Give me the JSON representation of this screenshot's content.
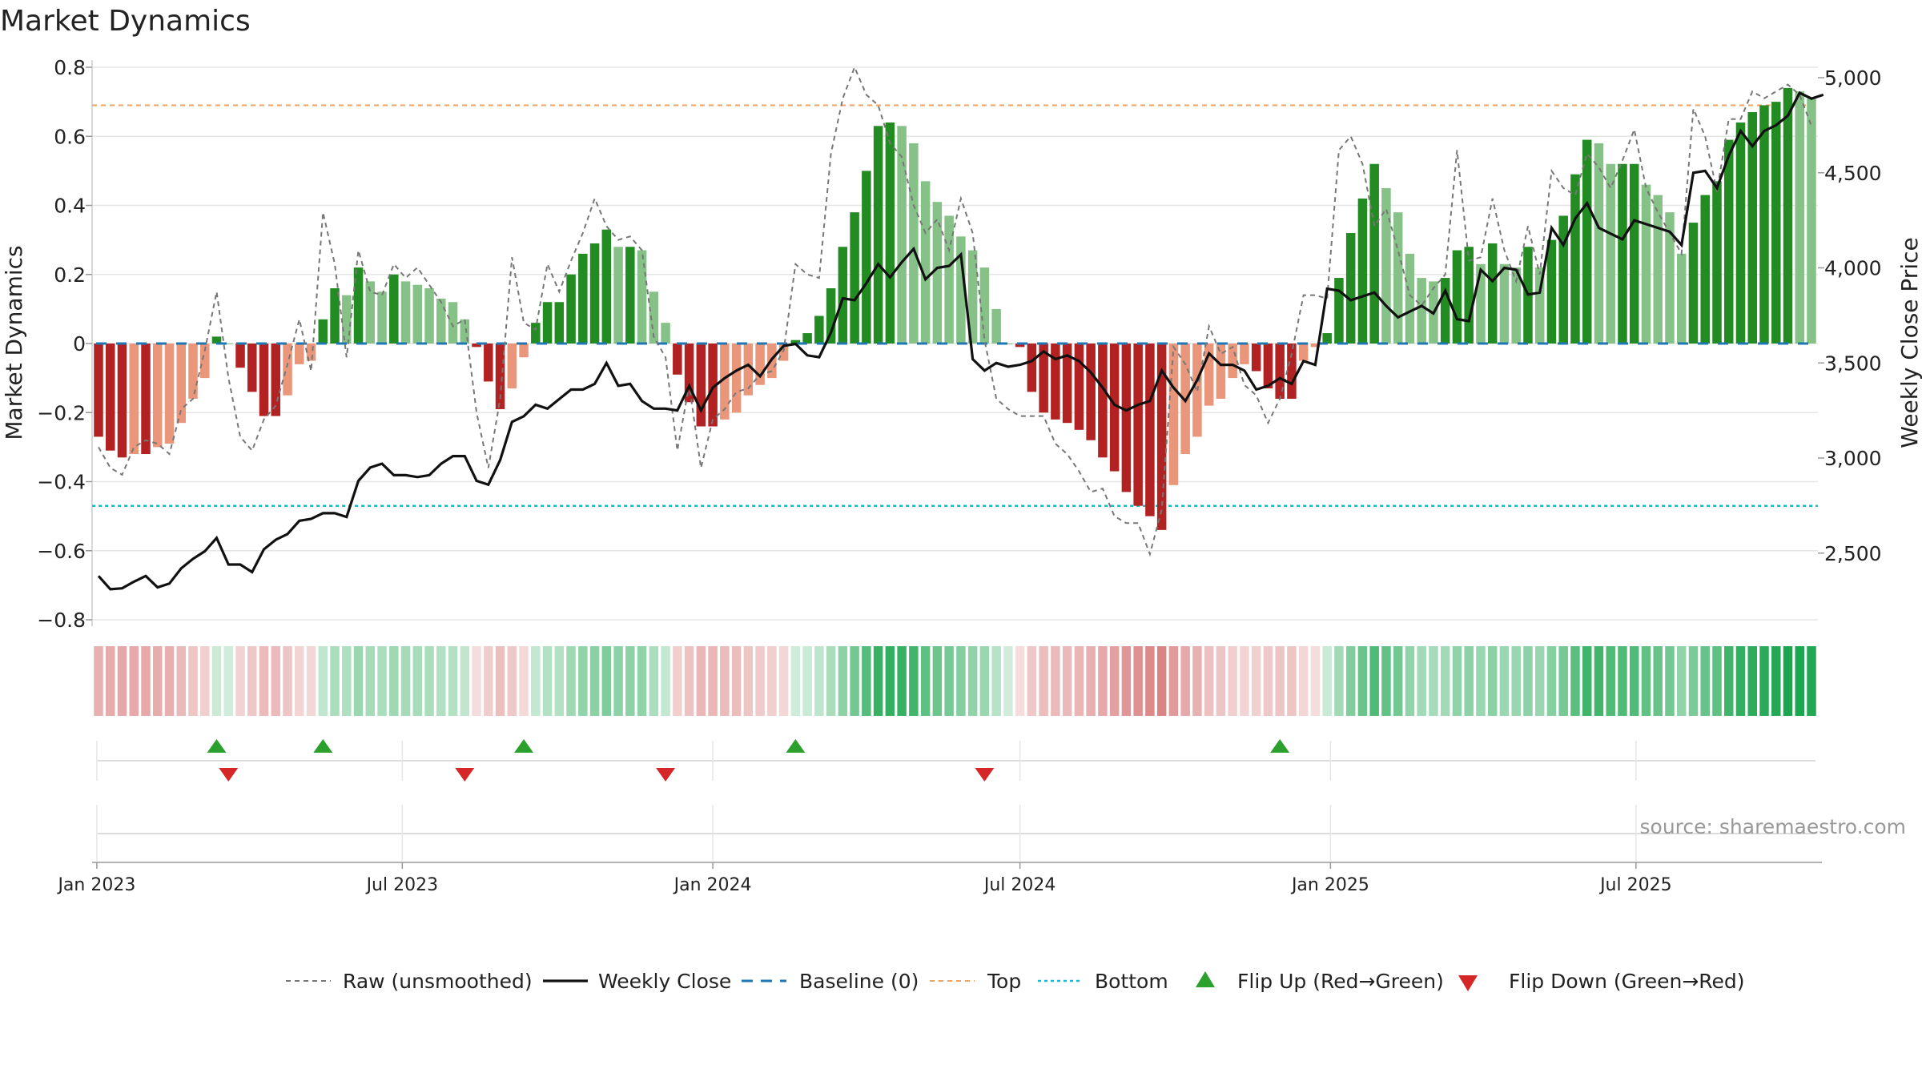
{
  "title": "Market Dynamics",
  "source": "source: sharemaestro.com",
  "colors": {
    "bar_red_strong": "#b22222",
    "bar_red_light": "#e9967a",
    "bar_green_strong": "#228b22",
    "bar_green_light": "#86c287",
    "raw_line": "#777777",
    "close_line": "#111111",
    "baseline": "#1f77b4",
    "top_line": "#f4a261",
    "bottom_line": "#17becf",
    "flip_up": "#2ca02c",
    "flip_down": "#d62728",
    "grid": "#e6e6e6"
  },
  "chart_data": {
    "type": "bar",
    "title": "Market Dynamics",
    "ylabel": "Market Dynamics",
    "y2label": "Weekly Close Price",
    "ylim": [
      -0.85,
      0.82
    ],
    "y2lim": [
      2100,
      5100
    ],
    "yticks": [
      "0.8",
      "0.6",
      "0.4",
      "0.2",
      "0",
      "−0.2",
      "−0.4",
      "−0.6",
      "−0.8"
    ],
    "y2ticks": [
      "5,000",
      "4,500",
      "4,000",
      "3,500",
      "3,000",
      "2,500"
    ],
    "xticks": [
      "Jan 2023",
      "Jul 2023",
      "Jan 2024",
      "Jul 2024",
      "Jan 2025",
      "Jul 2025"
    ],
    "x_start": "2023-01-02",
    "x_step_days": 7,
    "top_level": 0.69,
    "bottom_level": -0.47,
    "grid": true,
    "legend_position": "bottom",
    "legend": [
      "Raw (unsmoothed)",
      "Weekly Close",
      "Baseline (0)",
      "Top",
      "Bottom",
      "Flip Up (Red→Green)",
      "Flip Down (Green→Red)"
    ],
    "dynamics": [
      -0.27,
      -0.31,
      -0.33,
      -0.32,
      -0.32,
      -0.3,
      -0.29,
      -0.23,
      -0.16,
      -0.1,
      0.02,
      0.0,
      -0.07,
      -0.14,
      -0.21,
      -0.21,
      -0.15,
      -0.06,
      -0.05,
      0.07,
      0.16,
      0.14,
      0.22,
      0.18,
      0.15,
      0.2,
      0.18,
      0.17,
      0.16,
      0.13,
      0.12,
      0.07,
      -0.01,
      -0.11,
      -0.19,
      -0.13,
      -0.04,
      0.06,
      0.12,
      0.12,
      0.2,
      0.26,
      0.29,
      0.33,
      0.28,
      0.28,
      0.27,
      0.15,
      0.06,
      -0.09,
      -0.17,
      -0.24,
      -0.24,
      -0.22,
      -0.2,
      -0.15,
      -0.12,
      -0.1,
      -0.05,
      0.01,
      0.03,
      0.08,
      0.16,
      0.28,
      0.38,
      0.5,
      0.63,
      0.64,
      0.63,
      0.58,
      0.47,
      0.41,
      0.37,
      0.31,
      0.27,
      0.22,
      0.1,
      0.0,
      -0.01,
      -0.14,
      -0.2,
      -0.22,
      -0.23,
      -0.25,
      -0.28,
      -0.33,
      -0.37,
      -0.43,
      -0.47,
      -0.5,
      -0.54,
      -0.41,
      -0.32,
      -0.27,
      -0.18,
      -0.16,
      -0.1,
      -0.06,
      -0.08,
      -0.13,
      -0.16,
      -0.16,
      -0.05,
      -0.01,
      0.03,
      0.19,
      0.32,
      0.42,
      0.52,
      0.45,
      0.38,
      0.26,
      0.19,
      0.18,
      0.19,
      0.27,
      0.28,
      0.23,
      0.29,
      0.23,
      0.22,
      0.28,
      0.22,
      0.3,
      0.37,
      0.49,
      0.59,
      0.58,
      0.52,
      0.52,
      0.52,
      0.46,
      0.43,
      0.38,
      0.26,
      0.35,
      0.43,
      0.47,
      0.59,
      0.64,
      0.67,
      0.69,
      0.7,
      0.74,
      0.73,
      0.71
    ],
    "raw": [
      -0.3,
      -0.36,
      -0.38,
      -0.3,
      -0.28,
      -0.29,
      -0.32,
      -0.19,
      -0.16,
      -0.02,
      0.15,
      -0.1,
      -0.27,
      -0.31,
      -0.22,
      -0.18,
      -0.06,
      0.07,
      -0.08,
      0.38,
      0.23,
      -0.04,
      0.27,
      0.15,
      0.14,
      0.23,
      0.19,
      0.22,
      0.17,
      0.12,
      0.05,
      0.07,
      -0.2,
      -0.36,
      -0.16,
      0.25,
      0.06,
      0.04,
      0.23,
      0.15,
      0.24,
      0.32,
      0.42,
      0.34,
      0.3,
      0.31,
      0.27,
      0.02,
      -0.04,
      -0.31,
      -0.12,
      -0.36,
      -0.22,
      -0.19,
      -0.14,
      -0.13,
      -0.09,
      -0.08,
      -0.02,
      0.23,
      0.2,
      0.19,
      0.55,
      0.71,
      0.8,
      0.72,
      0.69,
      0.58,
      0.54,
      0.4,
      0.32,
      0.36,
      0.27,
      0.42,
      0.32,
      0.01,
      -0.16,
      -0.19,
      -0.21,
      -0.21,
      -0.21,
      -0.29,
      -0.32,
      -0.37,
      -0.43,
      -0.42,
      -0.5,
      -0.52,
      -0.52,
      -0.61,
      -0.48,
      -0.01,
      -0.06,
      -0.14,
      0.05,
      -0.03,
      -0.01,
      -0.12,
      -0.15,
      -0.23,
      -0.16,
      -0.03,
      0.14,
      0.14,
      0.13,
      0.56,
      0.6,
      0.52,
      0.34,
      0.39,
      0.27,
      0.14,
      0.11,
      0.16,
      0.2,
      0.56,
      0.24,
      0.25,
      0.42,
      0.27,
      0.18,
      0.34,
      0.2,
      0.5,
      0.45,
      0.43,
      0.55,
      0.51,
      0.45,
      0.53,
      0.62,
      0.45,
      0.38,
      0.32,
      0.26,
      0.68,
      0.6,
      0.44,
      0.65,
      0.65,
      0.73,
      0.71,
      0.73,
      0.75,
      0.72,
      0.63
    ],
    "weekly_close": [
      2380,
      2310,
      2315,
      2350,
      2380,
      2320,
      2340,
      2420,
      2470,
      2510,
      2580,
      2440,
      2440,
      2400,
      2520,
      2570,
      2600,
      2670,
      2680,
      2710,
      2710,
      2690,
      2880,
      2950,
      2970,
      2910,
      2910,
      2900,
      2910,
      2970,
      3010,
      3010,
      2880,
      2860,
      2990,
      3190,
      3220,
      3280,
      3260,
      3310,
      3360,
      3360,
      3390,
      3500,
      3380,
      3390,
      3300,
      3260,
      3260,
      3250,
      3380,
      3250,
      3370,
      3420,
      3460,
      3490,
      3430,
      3520,
      3590,
      3600,
      3540,
      3530,
      3660,
      3840,
      3830,
      3920,
      4020,
      3950,
      4030,
      4100,
      3940,
      4000,
      4010,
      4070,
      3520,
      3460,
      3500,
      3480,
      3490,
      3510,
      3560,
      3520,
      3540,
      3510,
      3450,
      3370,
      3280,
      3250,
      3280,
      3300,
      3460,
      3370,
      3300,
      3410,
      3550,
      3490,
      3490,
      3460,
      3360,
      3380,
      3420,
      3390,
      3510,
      3490,
      3890,
      3880,
      3830,
      3850,
      3870,
      3800,
      3740,
      3770,
      3800,
      3760,
      3880,
      3730,
      3720,
      3990,
      3930,
      4000,
      3990,
      3860,
      3870,
      4210,
      4120,
      4260,
      4340,
      4210,
      4180,
      4150,
      4250,
      4230,
      4210,
      4190,
      4120,
      4500,
      4510,
      4420,
      4590,
      4720,
      4640,
      4720,
      4750,
      4800,
      4920,
      4890,
      4910
    ],
    "flip_up": [
      "2023-03-13",
      "2023-05-15",
      "2023-09-11",
      "2024-02-19",
      "2024-12-02"
    ],
    "flip_down": [
      "2023-03-20",
      "2023-08-07",
      "2023-12-04",
      "2024-06-10"
    ]
  }
}
